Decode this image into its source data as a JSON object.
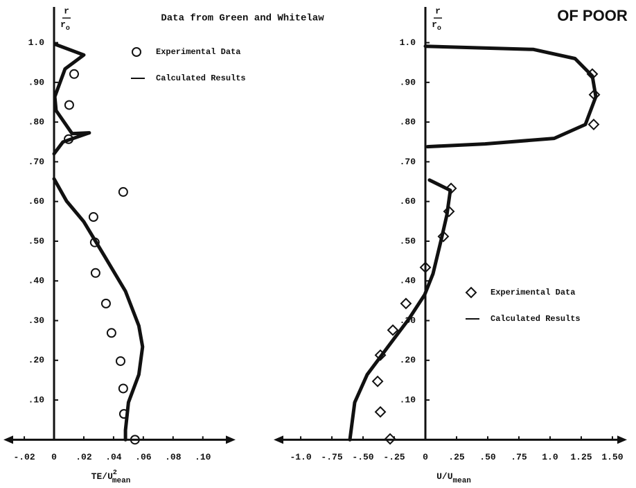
{
  "stamp": "OF POOR",
  "chart_data": [
    {
      "type": "line",
      "title": "Data from Green and Whitelaw",
      "xlabel": "TE/U",
      "xlabel_sup": "2",
      "xlabel_sub": "mean",
      "ylabel_num": "r",
      "ylabel_den": "r",
      "ylabel_den_sub": "o",
      "xlim": [
        -0.034,
        0.122
      ],
      "ylim": [
        -0.05,
        1.09
      ],
      "xticks": [
        {
          "value": -0.02,
          "label": "-.02"
        },
        0,
        {
          "value": 0.02,
          "label": ".02"
        },
        {
          "value": 0.04,
          "label": ".04"
        },
        {
          "value": 0.06,
          "label": ".06"
        },
        {
          "value": 0.08,
          "label": ".08"
        },
        {
          "value": 0.1,
          "label": ".10"
        }
      ],
      "yticks": [
        {
          "value": 0.1,
          "label": ".10"
        },
        {
          "value": 0.2,
          "label": ".20"
        },
        {
          "value": 0.3,
          "label": ".30"
        },
        {
          "value": 0.4,
          "label": ".40"
        },
        {
          "value": 0.5,
          "label": ".50"
        },
        {
          "value": 0.6,
          "label": ".60"
        },
        {
          "value": 0.7,
          "label": ".70"
        },
        {
          "value": 0.8,
          "label": ".80"
        },
        {
          "value": 0.9,
          "label": ".90"
        },
        {
          "value": 1.0,
          "label": "1.0"
        }
      ],
      "series": [
        {
          "name": "Experimental Data",
          "kind": "scatter",
          "marker": "circle",
          "color": "#111",
          "x": [
            0.0465,
            0.0135,
            0.0102,
            0.0098,
            0.0265,
            0.0274,
            0.0279,
            0.0349,
            0.0386,
            0.0447,
            0.0465,
            0.047,
            0.0544
          ],
          "values": [
            0.624,
            0.921,
            0.843,
            0.757,
            0.561,
            0.497,
            0.42,
            0.343,
            0.269,
            0.198,
            0.129,
            0.065,
            0
          ]
        },
        {
          "name": "Calculated Results",
          "kind": "line",
          "color": "#111",
          "x": [
            0.0014,
            0.02,
            0.0074,
            0.0005,
            0.0014,
            0.0121,
            0.0237,
            0.006,
            0,
            null,
            0,
            0.0084,
            0.02,
            0.034,
            0.048,
            0.057,
            0.0595,
            0.057,
            0.05,
            0.048,
            0.048
          ],
          "values": [
            0.995,
            0.969,
            0.934,
            0.864,
            0.829,
            0.771,
            0.773,
            0.75,
            0.72,
            null,
            0.657,
            0.601,
            0.549,
            0.462,
            0.374,
            0.287,
            0.234,
            0.164,
            0.094,
            0.024,
            0
          ]
        }
      ]
    },
    {
      "type": "line",
      "xlabel": "U/U",
      "xlabel_sub": "mean",
      "ylabel_num": "r",
      "ylabel_den": "r",
      "ylabel_den_sub": "o",
      "xlim": [
        -1.217,
        1.617
      ],
      "ylim": [
        -0.05,
        1.09
      ],
      "xticks": [
        {
          "value": -1.0,
          "label": "-1.0"
        },
        {
          "value": -0.75,
          "label": "-.75"
        },
        {
          "value": -0.5,
          "label": "-.50"
        },
        {
          "value": -0.25,
          "label": "-.25"
        },
        0,
        {
          "value": 0.25,
          "label": ".25"
        },
        {
          "value": 0.5,
          "label": ".50"
        },
        {
          "value": 0.75,
          "label": ".75"
        },
        {
          "value": 1.0,
          "label": "1.0"
        },
        1.25,
        {
          "value": 1.5,
          "label": "1.50"
        }
      ],
      "yticks": [
        {
          "value": 0.1,
          "label": ".10"
        },
        {
          "value": 0.2,
          "label": ".20"
        },
        {
          "value": 0.3,
          "label": ".30"
        },
        {
          "value": 0.4,
          "label": ".40"
        },
        {
          "value": 0.5,
          "label": ".50"
        },
        {
          "value": 0.6,
          "label": ".60"
        },
        {
          "value": 0.7,
          "label": ".70"
        },
        {
          "value": 0.8,
          "label": ".80"
        },
        {
          "value": 0.9,
          "label": ".90"
        },
        {
          "value": 1.0,
          "label": "1.0"
        }
      ],
      "series": [
        {
          "name": "Experimental Data",
          "kind": "scatter",
          "marker": "diamond",
          "color": "#111",
          "x": [
            1.339,
            1.356,
            1.35,
            0.206,
            0.189,
            0.144,
            0,
            -0.156,
            -0.261,
            -0.361,
            -0.383,
            -0.361,
            -0.283
          ],
          "values": [
            0.921,
            0.869,
            0.794,
            0.633,
            0.575,
            0.512,
            0.434,
            0.343,
            0.276,
            0.213,
            0.147,
            0.07,
            0.002
          ]
        },
        {
          "name": "Calculated Results",
          "kind": "line",
          "color": "#111",
          "x": [
            0,
            0.867,
            1.2,
            1.339,
            1.367,
            1.283,
            1.033,
            0.478,
            0.017,
            null,
            0.033,
            0.2,
            0.172,
            0.128,
            0.061,
            -0.006,
            -0.133,
            -0.3,
            -0.467,
            -0.567,
            -0.606
          ],
          "values": [
            0.991,
            0.983,
            0.96,
            0.916,
            0.864,
            0.794,
            0.759,
            0.745,
            0.738,
            null,
            0.654,
            0.628,
            0.566,
            0.505,
            0.418,
            0.365,
            0.304,
            0.234,
            0.164,
            0.094,
            0
          ]
        }
      ]
    }
  ]
}
